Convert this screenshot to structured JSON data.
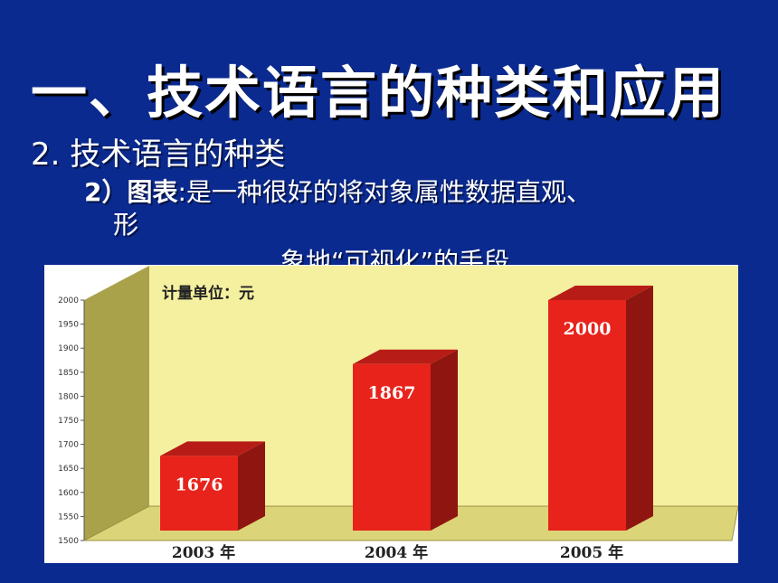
{
  "slide": {
    "title": "一、技术语言的种类和应用",
    "subtitle": "2. 技术语言的种类",
    "bullet_lead": "2）图表",
    "bullet_text": ":是一种很好的将对象属性数据直观、",
    "bullet_cont": "形",
    "bullet_line2": "象地“可视化”的手段"
  },
  "chart_data": {
    "type": "bar",
    "title": "计量单位：元",
    "categories": [
      "2003 年",
      "2004 年",
      "2005 年"
    ],
    "values": [
      1676,
      1867,
      2000
    ],
    "ylim": [
      1500,
      2000
    ],
    "yticks": [
      "1500",
      "1550",
      "1600",
      "1650",
      "1700",
      "1750",
      "1800",
      "1850",
      "1900",
      "1950",
      "2000"
    ],
    "bar_color": "#e8231c",
    "wall_color": "#f5f0a0"
  }
}
